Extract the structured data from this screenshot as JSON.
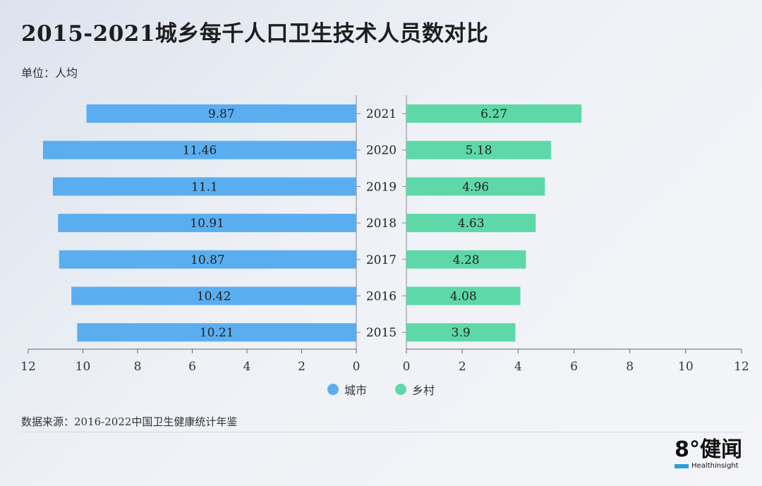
{
  "title": "2015-2021城乡每千人口卫生技术人员数对比",
  "unit": "单位：人均",
  "source": "数据来源：2016-2022中国卫生健康统计年鉴",
  "logo": {
    "main": "8°健闻",
    "sub": "Healthinsight"
  },
  "colors": {
    "urban": "#5aaef0",
    "rural": "#5ed8a8"
  },
  "legend": [
    {
      "label": "城市",
      "color": "#5aaef0"
    },
    {
      "label": "乡村",
      "color": "#5ed8a8"
    }
  ],
  "chart_data": {
    "type": "bar",
    "orientation": "horizontal-butterfly",
    "categories": [
      "2021",
      "2020",
      "2019",
      "2018",
      "2017",
      "2016",
      "2015"
    ],
    "series": [
      {
        "name": "城市",
        "values": [
          9.87,
          11.46,
          11.1,
          10.91,
          10.87,
          10.42,
          10.21
        ]
      },
      {
        "name": "乡村",
        "values": [
          6.27,
          5.18,
          4.96,
          4.63,
          4.28,
          4.08,
          3.9
        ]
      }
    ],
    "left_ticks": [
      "12",
      "10",
      "8",
      "6",
      "4",
      "2",
      "0"
    ],
    "right_ticks": [
      "0",
      "2",
      "4",
      "6",
      "8",
      "10",
      "12"
    ],
    "xlim": [
      0,
      12
    ],
    "grid": false
  }
}
